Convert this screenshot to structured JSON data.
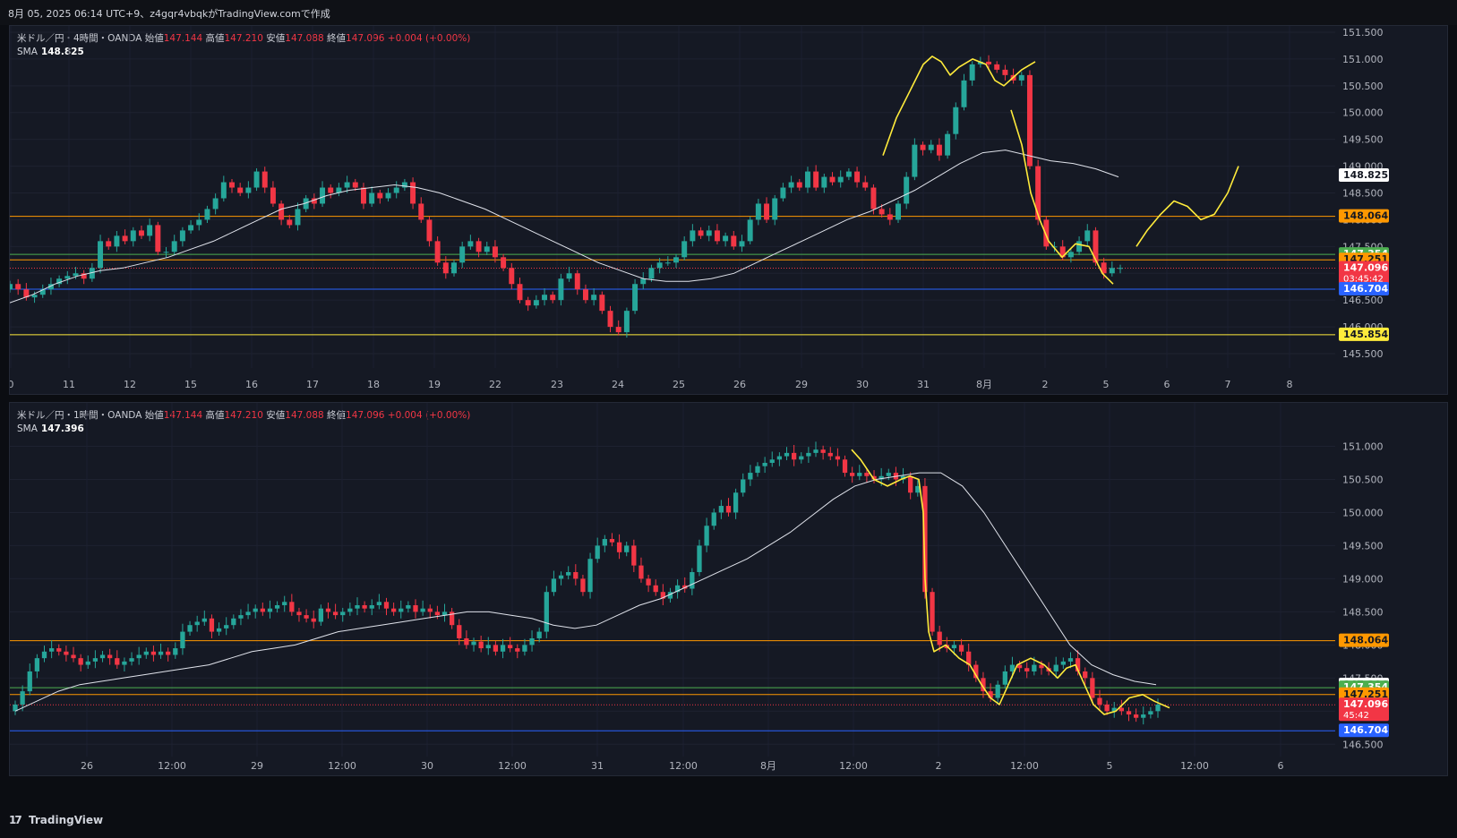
{
  "header": {
    "text": "8月 05, 2025 06:14 UTC+9、z4gqr4vbqkがTradingView.comで作成"
  },
  "footer": {
    "brand": "TradingView",
    "logo_glyph": "17"
  },
  "colors": {
    "bull": "#26a69a",
    "bear": "#f23645",
    "sma": "#e0e3eb",
    "yellow": "#ffeb3b",
    "orange": "#ff9800",
    "green": "#4caf50",
    "blue": "#2962ff",
    "red": "#f23645"
  },
  "chart_data": [
    {
      "id": "4h",
      "type": "candlestick",
      "legend": {
        "symbol": "米ドル／円・4時間・OANDA",
        "open_label": "始値",
        "open": "147.144",
        "high_label": "高値",
        "high": "147.210",
        "low_label": "安値",
        "low": "147.088",
        "close_label": "終値",
        "close": "147.096",
        "change": "+0.004 (+0.00%)"
      },
      "sma": {
        "label": "SMA",
        "value": "148.825"
      },
      "y_ticks": [
        "151.500",
        "151.000",
        "150.500",
        "150.000",
        "149.500",
        "149.000",
        "148.500",
        "148.000",
        "147.500",
        "147.000",
        "146.500",
        "146.000",
        "145.500"
      ],
      "y_range": [
        145.4,
        151.55
      ],
      "x_ticks": [
        "0",
        "11",
        "12",
        "15",
        "16",
        "17",
        "18",
        "19",
        "22",
        "23",
        "24",
        "25",
        "26",
        "29",
        "30",
        "31",
        "8月",
        "2",
        "5",
        "6",
        "7",
        "8"
      ],
      "hlines": [
        {
          "value": 148.064,
          "label": "148.064",
          "color": "orange"
        },
        {
          "value": 147.354,
          "label": "147.354",
          "color": "green"
        },
        {
          "value": 147.251,
          "label": "147.251",
          "color": "orange"
        },
        {
          "value": 147.096,
          "label": "147.096",
          "sub": "03:45:42",
          "color": "red",
          "dotted": true
        },
        {
          "value": 146.704,
          "label": "146.704",
          "color": "blue"
        },
        {
          "value": 145.854,
          "label": "145.854",
          "color": "yellow"
        }
      ],
      "sma_tag": {
        "value": 148.825,
        "label": "148.825"
      },
      "close_series": [
        146.8,
        146.7,
        146.55,
        146.6,
        146.7,
        146.8,
        146.9,
        146.95,
        147.0,
        146.9,
        147.1,
        147.6,
        147.5,
        147.7,
        147.6,
        147.8,
        147.7,
        147.9,
        147.4,
        147.4,
        147.6,
        147.8,
        147.9,
        148.0,
        148.2,
        148.4,
        148.7,
        148.6,
        148.5,
        148.6,
        148.9,
        148.6,
        148.3,
        148.0,
        147.9,
        148.2,
        148.4,
        148.3,
        148.6,
        148.5,
        148.6,
        148.7,
        148.6,
        148.3,
        148.5,
        148.4,
        148.5,
        148.6,
        148.7,
        148.3,
        148.0,
        147.6,
        147.2,
        147.0,
        147.2,
        147.5,
        147.6,
        147.4,
        147.5,
        147.3,
        147.1,
        146.8,
        146.5,
        146.4,
        146.5,
        146.6,
        146.5,
        146.9,
        147.0,
        146.7,
        146.5,
        146.6,
        146.3,
        146.0,
        145.9,
        146.3,
        146.8,
        146.9,
        147.1,
        147.2,
        147.2,
        147.3,
        147.6,
        147.8,
        147.7,
        147.8,
        147.6,
        147.7,
        147.5,
        147.6,
        148.0,
        148.3,
        148.0,
        148.4,
        148.6,
        148.7,
        148.6,
        148.9,
        148.6,
        148.8,
        148.7,
        148.8,
        148.9,
        148.7,
        148.6,
        148.2,
        148.1,
        148.0,
        148.3,
        148.8,
        149.4,
        149.3,
        149.4,
        149.2,
        149.6,
        150.1,
        150.6,
        150.9,
        150.95,
        150.9,
        150.8,
        150.7,
        150.6,
        150.7,
        149.0,
        148.0,
        147.5,
        147.5,
        147.3,
        147.4,
        147.6,
        147.8,
        147.2,
        147.0,
        147.1,
        147.1
      ],
      "sma_series": [
        146.45,
        146.6,
        146.8,
        146.95,
        147.05,
        147.1,
        147.2,
        147.3,
        147.45,
        147.6,
        147.8,
        148.0,
        148.2,
        148.3,
        148.45,
        148.55,
        148.6,
        148.65,
        148.6,
        148.5,
        148.35,
        148.2,
        148.0,
        147.8,
        147.6,
        147.4,
        147.2,
        147.05,
        146.9,
        146.85,
        146.85,
        146.9,
        147.0,
        147.2,
        147.4,
        147.6,
        147.8,
        148.0,
        148.15,
        148.35,
        148.55,
        148.8,
        149.05,
        149.25,
        149.3,
        149.2,
        149.1,
        149.05,
        148.95,
        148.8
      ],
      "sma_start_index": 0,
      "annotations": [
        {
          "name": "wave-a",
          "points": [
            [
              975,
              149.2
            ],
            [
              990,
              149.9
            ],
            [
              1005,
              150.4
            ],
            [
              1020,
              150.9
            ],
            [
              1030,
              151.05
            ],
            [
              1040,
              150.95
            ],
            [
              1050,
              150.7
            ],
            [
              1060,
              150.85
            ],
            [
              1075,
              151.0
            ],
            [
              1090,
              150.9
            ],
            [
              1100,
              150.6
            ],
            [
              1110,
              150.5
            ],
            [
              1130,
              150.8
            ],
            [
              1145,
              150.95
            ]
          ]
        },
        {
          "name": "wave-b",
          "points": [
            [
              1118,
              150.05
            ],
            [
              1130,
              149.4
            ],
            [
              1140,
              148.5
            ],
            [
              1150,
              148.0
            ],
            [
              1160,
              147.6
            ],
            [
              1175,
              147.3
            ],
            [
              1190,
              147.55
            ],
            [
              1205,
              147.5
            ],
            [
              1220,
              147.0
            ],
            [
              1232,
              146.8
            ]
          ]
        },
        {
          "name": "wave-c",
          "points": [
            [
              1258,
              147.5
            ],
            [
              1270,
              147.8
            ],
            [
              1285,
              148.1
            ],
            [
              1300,
              148.35
            ],
            [
              1315,
              148.25
            ],
            [
              1330,
              148.0
            ],
            [
              1345,
              148.1
            ],
            [
              1360,
              148.5
            ],
            [
              1372,
              149.0
            ]
          ]
        }
      ]
    },
    {
      "id": "1h",
      "type": "candlestick",
      "legend": {
        "symbol": "米ドル／円・1時間・OANDA",
        "open_label": "始値",
        "open": "147.144",
        "high_label": "高値",
        "high": "147.210",
        "low_label": "安値",
        "low": "147.088",
        "close_label": "終値",
        "close": "147.096",
        "change": "+0.004 (+0.00%)"
      },
      "sma": {
        "label": "SMA",
        "value": "147.396"
      },
      "y_ticks": [
        "151.000",
        "150.500",
        "150.000",
        "149.500",
        "149.000",
        "148.500",
        "148.000",
        "147.500",
        "147.000",
        "146.500"
      ],
      "y_range": [
        146.45,
        151.25
      ],
      "x_ticks": [
        "26",
        "12:00",
        "29",
        "12:00",
        "30",
        "12:00",
        "31",
        "12:00",
        "8月",
        "12:00",
        "2",
        "12:00",
        "5",
        "12:00",
        "6"
      ],
      "hlines": [
        {
          "value": 148.064,
          "label": "148.064",
          "color": "orange"
        },
        {
          "value": 147.396,
          "label": "147.396",
          "color": "white-tag"
        },
        {
          "value": 147.354,
          "label": "147.354",
          "color": "green"
        },
        {
          "value": 147.251,
          "label": "147.251",
          "color": "orange"
        },
        {
          "value": 147.096,
          "label": "147.096",
          "sub": "45:42",
          "color": "red",
          "dotted": true
        },
        {
          "value": 146.704,
          "label": "146.704",
          "color": "blue"
        }
      ],
      "close_series": [
        147.1,
        147.3,
        147.6,
        147.8,
        147.9,
        147.95,
        147.9,
        147.85,
        147.8,
        147.7,
        147.75,
        147.8,
        147.85,
        147.8,
        147.7,
        147.75,
        147.8,
        147.85,
        147.9,
        147.85,
        147.9,
        147.85,
        147.95,
        148.2,
        148.3,
        148.35,
        148.4,
        148.2,
        148.25,
        148.3,
        148.4,
        148.45,
        148.5,
        148.55,
        148.5,
        148.55,
        148.6,
        148.65,
        148.5,
        148.45,
        148.4,
        148.35,
        148.55,
        148.5,
        148.45,
        148.5,
        148.55,
        148.6,
        148.55,
        148.6,
        148.65,
        148.55,
        148.5,
        148.55,
        148.6,
        148.5,
        148.55,
        148.5,
        148.45,
        148.5,
        148.3,
        148.1,
        148.0,
        148.05,
        147.95,
        148.0,
        147.9,
        148.0,
        147.95,
        147.9,
        148.0,
        148.1,
        148.2,
        148.8,
        149.0,
        149.05,
        149.1,
        149.0,
        148.8,
        149.3,
        149.5,
        149.6,
        149.55,
        149.4,
        149.5,
        149.2,
        149.0,
        148.9,
        148.8,
        148.7,
        148.8,
        148.9,
        148.85,
        149.1,
        149.5,
        149.8,
        150.0,
        150.1,
        150.0,
        150.3,
        150.5,
        150.6,
        150.7,
        150.75,
        150.8,
        150.85,
        150.9,
        150.8,
        150.85,
        150.9,
        150.95,
        150.9,
        150.85,
        150.8,
        150.6,
        150.55,
        150.6,
        150.55,
        150.5,
        150.55,
        150.6,
        150.5,
        150.55,
        150.3,
        150.4,
        148.8,
        148.2,
        148.0,
        147.95,
        148.0,
        147.9,
        147.7,
        147.5,
        147.3,
        147.2,
        147.4,
        147.6,
        147.7,
        147.65,
        147.6,
        147.7,
        147.65,
        147.6,
        147.7,
        147.75,
        147.8,
        147.6,
        147.5,
        147.2,
        147.1,
        147.0,
        147.05,
        147.0,
        146.95,
        146.9,
        146.95,
        147.0,
        147.1
      ],
      "sma_series": [
        147.0,
        147.15,
        147.3,
        147.4,
        147.45,
        147.5,
        147.55,
        147.6,
        147.65,
        147.7,
        147.8,
        147.9,
        147.95,
        148.0,
        148.1,
        148.2,
        148.25,
        148.3,
        148.35,
        148.4,
        148.45,
        148.5,
        148.5,
        148.45,
        148.4,
        148.3,
        148.25,
        148.3,
        148.45,
        148.6,
        148.7,
        148.85,
        149.0,
        149.15,
        149.3,
        149.5,
        149.7,
        149.95,
        150.2,
        150.4,
        150.5,
        150.55,
        150.6,
        150.6,
        150.4,
        150.0,
        149.5,
        149.0,
        148.5,
        148.0,
        147.7,
        147.55,
        147.45,
        147.4
      ],
      "annotations": [
        {
          "name": "wave-d",
          "points": [
            [
              940,
              150.95
            ],
            [
              950,
              150.8
            ],
            [
              965,
              150.5
            ],
            [
              980,
              150.4
            ],
            [
              995,
              150.5
            ],
            [
              1005,
              150.55
            ],
            [
              1015,
              150.5
            ],
            [
              1020,
              150.0
            ],
            [
              1022,
              149.0
            ],
            [
              1026,
              148.2
            ],
            [
              1032,
              147.9
            ],
            [
              1045,
              148.0
            ],
            [
              1060,
              147.8
            ],
            [
              1072,
              147.7
            ],
            [
              1085,
              147.4
            ],
            [
              1095,
              147.2
            ],
            [
              1105,
              147.1
            ],
            [
              1115,
              147.4
            ],
            [
              1125,
              147.7
            ],
            [
              1140,
              147.8
            ],
            [
              1155,
              147.7
            ],
            [
              1170,
              147.5
            ],
            [
              1180,
              147.65
            ],
            [
              1190,
              147.7
            ],
            [
              1200,
              147.4
            ],
            [
              1210,
              147.1
            ],
            [
              1222,
              146.95
            ],
            [
              1235,
              147.0
            ],
            [
              1250,
              147.2
            ],
            [
              1265,
              147.25
            ],
            [
              1278,
              147.15
            ],
            [
              1295,
              147.05
            ]
          ]
        }
      ]
    }
  ]
}
